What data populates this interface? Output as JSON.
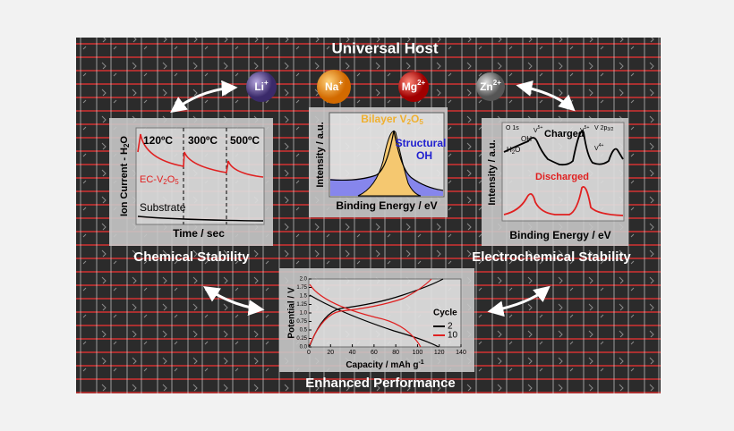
{
  "title": "Universal Host",
  "ions": [
    {
      "symbol": "Li",
      "charge": "+"
    },
    {
      "symbol": "Na",
      "charge": "+"
    },
    {
      "symbol": "Mg",
      "charge": "2+"
    },
    {
      "symbol": "Zn",
      "charge": "2+"
    }
  ],
  "panels": {
    "chemical": {
      "caption": "Chemical Stability",
      "y_label": [
        "Ion Current - H",
        "2",
        "O"
      ],
      "x_label": "Time / sec",
      "temperatures": [
        "120ºC",
        "300ºC",
        "500ºC"
      ],
      "sample_label": [
        "EC-V",
        "2",
        "O",
        "5"
      ],
      "substrate_label": "Substrate"
    },
    "spectrum": {
      "peak_label": [
        "Bilayer V",
        "2",
        "O",
        "5"
      ],
      "oh_label": [
        "Structural",
        "OH"
      ],
      "y_label": "Intensity / a.u.",
      "x_label": "Binding Energy / eV"
    },
    "electrochemical": {
      "caption": "Electrochemical Stability",
      "o_region": "O 1s",
      "v_region": [
        "V 2p",
        "3/2"
      ],
      "oh": "OH",
      "h2o": [
        "H",
        "2",
        "O"
      ],
      "v5": [
        "V",
        "5+"
      ],
      "v4": [
        "V",
        "4+"
      ],
      "charged": "Charged",
      "discharged": "Discharged",
      "y_label": "Intensity / a.u.",
      "x_label": "Binding Energy / eV"
    },
    "performance": {
      "caption": "Enhanced Performance",
      "y_label": "Potential / V",
      "x_label": [
        "Capacity / mAh g",
        "-1"
      ],
      "xlim": [
        0,
        140
      ],
      "ylim": [
        0,
        2
      ],
      "xticks": [
        0,
        20,
        40,
        60,
        80,
        100,
        120,
        140
      ],
      "yticks": [
        {
          "value": 0,
          "label": "0.0"
        },
        {
          "value": 0.25,
          "label": "0.25"
        },
        {
          "value": 0.5,
          "label": "0.5"
        },
        {
          "value": 0.75,
          "label": "0.75"
        },
        {
          "value": 1,
          "label": "1.0"
        },
        {
          "value": 1.25,
          "label": "1.25"
        },
        {
          "value": 1.5,
          "label": "1.5"
        },
        {
          "value": 1.75,
          "label": "1.75"
        },
        {
          "value": 2,
          "label": "2.0"
        }
      ],
      "legend": {
        "title": "Cycle",
        "entries": [
          {
            "name": "2",
            "color": "#000000"
          },
          {
            "name": "10",
            "color": "#e02020"
          }
        ]
      }
    }
  }
}
